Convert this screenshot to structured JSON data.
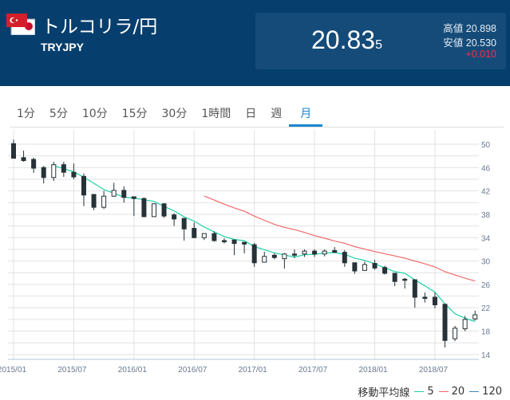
{
  "header": {
    "title": "トルコリラ/円",
    "code": "TRYJPY",
    "price_main": "20.83",
    "price_last": "5",
    "high_label": "高値",
    "high": "20.898",
    "low_label": "安値",
    "low": "20.530",
    "change": "+0.010"
  },
  "tabs": [
    {
      "label": "1分"
    },
    {
      "label": "5分"
    },
    {
      "label": "10分"
    },
    {
      "label": "15分"
    },
    {
      "label": "30分"
    },
    {
      "label": "1時間"
    },
    {
      "label": "日"
    },
    {
      "label": "週"
    },
    {
      "label": "月",
      "active": true
    }
  ],
  "legend": {
    "title": "移動平均線",
    "items": [
      {
        "label": "5",
        "color": "#1fd1a8"
      },
      {
        "label": "20",
        "color": "#f06a6a"
      },
      {
        "label": "120",
        "color": "#3a86b8"
      }
    ]
  },
  "chart_data": {
    "type": "candlestick",
    "interval": "monthly",
    "start": "2015/01",
    "y_ticks": [
      50,
      46,
      42,
      38,
      34,
      30,
      26,
      22,
      18,
      14
    ],
    "ylim": [
      14,
      50
    ],
    "x_ticks": [
      "2015/01",
      "2015/07",
      "2016/01",
      "2016/07",
      "2017/01",
      "2017/07",
      "2018/01",
      "2018/07"
    ],
    "ohlc": [
      [
        50.1,
        50.8,
        47.6,
        47.6
      ],
      [
        47.7,
        48.9,
        47.0,
        47.2
      ],
      [
        47.4,
        47.7,
        45.1,
        45.9
      ],
      [
        46.0,
        46.3,
        43.3,
        44.3
      ],
      [
        44.3,
        47.0,
        43.7,
        46.5
      ],
      [
        46.5,
        47.0,
        44.4,
        45.2
      ],
      [
        45.2,
        46.7,
        44.0,
        44.4
      ],
      [
        44.5,
        45.0,
        39.4,
        41.3
      ],
      [
        41.4,
        41.4,
        38.7,
        39.2
      ],
      [
        39.2,
        42.0,
        38.9,
        41.1
      ],
      [
        41.1,
        43.4,
        41.0,
        42.1
      ],
      [
        42.1,
        42.8,
        40.0,
        40.9
      ],
      [
        41.0,
        41.0,
        37.7,
        40.7
      ],
      [
        40.7,
        40.9,
        37.5,
        37.6
      ],
      [
        37.6,
        39.8,
        37.6,
        39.8
      ],
      [
        39.8,
        39.9,
        37.4,
        37.7
      ],
      [
        37.9,
        38.2,
        36.0,
        37.2
      ],
      [
        37.3,
        37.3,
        33.5,
        35.5
      ],
      [
        35.6,
        36.6,
        34.0,
        34.0
      ],
      [
        34.0,
        34.7,
        33.6,
        34.7
      ],
      [
        34.7,
        35.1,
        33.3,
        33.5
      ],
      [
        33.5,
        33.9,
        33.0,
        33.3
      ],
      [
        33.6,
        33.6,
        31.0,
        33.0
      ],
      [
        33.2,
        33.3,
        31.3,
        32.9
      ],
      [
        32.8,
        33.1,
        29.0,
        29.7
      ],
      [
        29.8,
        31.6,
        29.8,
        30.8
      ],
      [
        31.0,
        31.3,
        30.3,
        30.6
      ],
      [
        30.4,
        31.4,
        28.7,
        31.2
      ],
      [
        31.2,
        32.0,
        30.5,
        31.1
      ],
      [
        31.2,
        32.0,
        30.7,
        31.7
      ],
      [
        31.7,
        32.0,
        30.7,
        31.2
      ],
      [
        31.2,
        32.0,
        30.8,
        31.7
      ],
      [
        31.8,
        32.4,
        31.4,
        31.5
      ],
      [
        31.5,
        31.9,
        29.0,
        29.7
      ],
      [
        29.7,
        29.8,
        27.8,
        28.3
      ],
      [
        28.4,
        29.9,
        28.3,
        29.4
      ],
      [
        29.6,
        30.2,
        28.5,
        28.8
      ],
      [
        28.9,
        29.2,
        27.7,
        27.9
      ],
      [
        27.9,
        27.9,
        25.7,
        26.5
      ],
      [
        26.9,
        27.1,
        25.3,
        26.9
      ],
      [
        26.8,
        26.8,
        22.0,
        23.8
      ],
      [
        23.8,
        24.6,
        22.9,
        23.7
      ],
      [
        23.8,
        24.6,
        21.9,
        22.5
      ],
      [
        22.6,
        22.7,
        15.2,
        16.4
      ],
      [
        16.7,
        18.9,
        16.3,
        18.5
      ],
      [
        18.4,
        20.6,
        18.0,
        20.0
      ],
      [
        20.1,
        21.5,
        19.8,
        20.8
      ]
    ],
    "ma_periods": [
      5,
      20
    ]
  }
}
